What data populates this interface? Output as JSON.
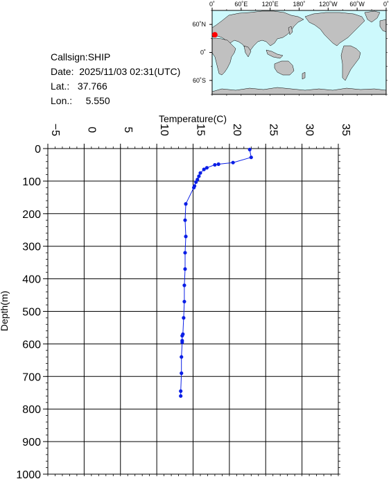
{
  "station": {
    "callsign_label": "Callsign:",
    "callsign": "SHIP",
    "date_label": "Date:",
    "date": "2025/11/03 02:31(UTC)",
    "lat_label": "Lat.:",
    "lat": "37.766",
    "lon_label": "Lon.:",
    "lon": "5.550"
  },
  "map": {
    "lon_ticks": [
      "0˚",
      "60˚E",
      "120˚E",
      "180˚",
      "120˚W",
      "60˚W",
      "0˚"
    ],
    "lat_ticks": [
      {
        "label": "60˚N",
        "lat": 60
      },
      {
        "label": "0˚",
        "lat": 0
      },
      {
        "label": "60˚S",
        "lat": -60
      }
    ],
    "ocean_color": "#cdf9fc",
    "land_color": "#c0c0c0",
    "marker_color": "#ff0000",
    "marker": {
      "lon": 5.55,
      "lat": 37.766
    }
  },
  "chart_data": {
    "type": "line",
    "xlabel": "Temperature(C)",
    "ylabel": "Depth(m)",
    "xlim": [
      -5,
      35
    ],
    "ylim": [
      0,
      1000
    ],
    "y_inverted": true,
    "x_ticks": [
      -5,
      0,
      5,
      10,
      15,
      20,
      25,
      30,
      35
    ],
    "y_ticks": [
      0,
      100,
      200,
      300,
      400,
      500,
      600,
      700,
      800,
      900,
      1000
    ],
    "grid": true,
    "series_color": "#0a1ee6",
    "series": [
      {
        "temperature": [
          22.8,
          23.0,
          20.5,
          18.5,
          18.0,
          16.9,
          16.5,
          16.0,
          15.8,
          15.6,
          15.4,
          15.2,
          15.1,
          14.0,
          13.9,
          14.0,
          13.9,
          13.9,
          13.8,
          13.8,
          13.7,
          13.6,
          13.5,
          13.5,
          13.5,
          13.4,
          13.4,
          13.3,
          13.3
        ],
        "depth": [
          3,
          27,
          43,
          48,
          50,
          59,
          64,
          75,
          85,
          95,
          103,
          115,
          120,
          170,
          220,
          270,
          320,
          370,
          420,
          470,
          520,
          570,
          575,
          590,
          595,
          640,
          690,
          745,
          760
        ]
      }
    ]
  }
}
